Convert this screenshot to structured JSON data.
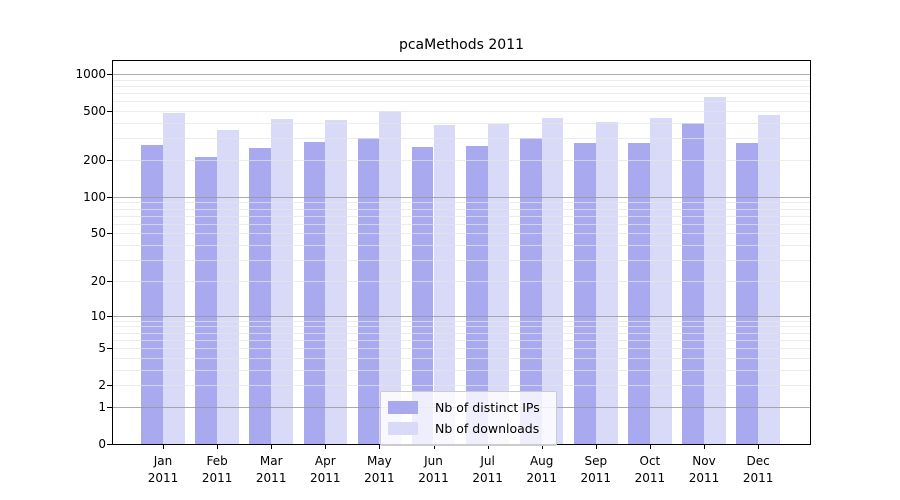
{
  "title": "pcaMethods 2011",
  "chart_data": {
    "type": "bar",
    "title": "pcaMethods 2011",
    "year": "2011",
    "categories": [
      "Jan 2011",
      "Feb 2011",
      "Mar 2011",
      "Apr 2011",
      "May 2011",
      "Jun 2011",
      "Jul 2011",
      "Aug 2011",
      "Sep 2011",
      "Oct 2011",
      "Nov 2011",
      "Dec 2011"
    ],
    "months": [
      "Jan",
      "Feb",
      "Mar",
      "Apr",
      "May",
      "Jun",
      "Jul",
      "Aug",
      "Sep",
      "Oct",
      "Nov",
      "Dec"
    ],
    "series": [
      {
        "name": "Nb of distinct IPs",
        "color": "#a9a9f0",
        "values": [
          265,
          210,
          250,
          280,
          300,
          255,
          260,
          300,
          275,
          275,
          400,
          275
        ]
      },
      {
        "name": "Nb of downloads",
        "color": "#d9d9f8",
        "values": [
          480,
          350,
          430,
          425,
          500,
          385,
          390,
          440,
          410,
          440,
          650,
          465
        ]
      }
    ],
    "y_axis": {
      "scale": "log10(1+value)",
      "tick_values": [
        0,
        1,
        2,
        5,
        10,
        20,
        50,
        100,
        200,
        500,
        1000
      ],
      "top_value": 1275
    },
    "grid": {
      "on": true,
      "major_values": [
        1,
        10,
        100,
        1000
      ],
      "minor_values": [
        2,
        3,
        4,
        5,
        6,
        7,
        8,
        9,
        20,
        30,
        40,
        50,
        60,
        70,
        80,
        90,
        200,
        300,
        400,
        500,
        600,
        700,
        800,
        900
      ]
    },
    "legend": {
      "position": "lower-center-inside"
    },
    "colors": {
      "bar_distinct_ips": "#a9a9f0",
      "bar_downloads": "#d9d9f8",
      "major_grid": "#a0a0a0",
      "minor_grid": "#e7e7e7",
      "frame": "#000000",
      "background": "#ffffff"
    }
  }
}
